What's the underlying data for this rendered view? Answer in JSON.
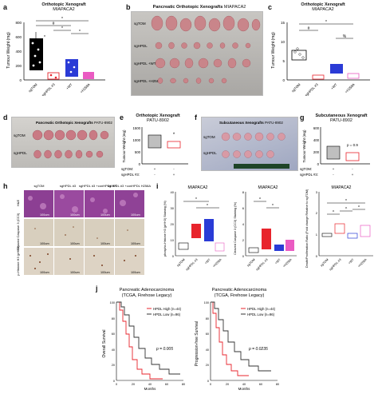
{
  "panel_labels": [
    "a",
    "b",
    "c",
    "d",
    "e",
    "f",
    "g",
    "h",
    "i",
    "j"
  ],
  "panel_a": {
    "title": "Orthotopic Xenograft",
    "subtitle": "MIAPACA2",
    "ylabel": "Tumour Weight (mg)",
    "yticks": [
      "0",
      "200",
      "400",
      "600",
      "800"
    ],
    "groups": [
      "sgTOM",
      "sgHPDL #3",
      "+WT",
      "+H258A"
    ],
    "sig_marks": [
      "*",
      "#",
      "*",
      "*",
      "*"
    ],
    "colors": [
      "#000000",
      "#e8242c",
      "#2a3bd6",
      "#ea5bc2"
    ]
  },
  "panel_b": {
    "title": "Pancreatic Orthotopic Xenografts",
    "cell_line": "MIAPACA2",
    "row_labels": [
      "sgTOM",
      "sgHPDL",
      "sgHPDL +WT",
      "sgHPDL +H258A"
    ]
  },
  "panel_c": {
    "title": "Orthotopic Xenograft",
    "subtitle": "MIAPACA2",
    "ylabel": "Tumour Weight (mg)",
    "yticks": [
      "0",
      "5",
      "10",
      "15"
    ],
    "groups": [
      "sgTOM",
      "sgHPDL #3",
      "+WT",
      "+H258A"
    ],
    "sig_marks": [
      "*",
      "#",
      "%"
    ]
  },
  "panel_d": {
    "title": "Pancreatic Orthotopic Xenografts",
    "cell_line": "PATU-8902",
    "row_labels": [
      "sgTOM",
      "sgHPDL"
    ]
  },
  "panel_e": {
    "title": "Orthotopic Xenograft",
    "subtitle": "PATU-8902",
    "ylabel": "Tumour Weight (mg)",
    "yticks": [
      "0",
      "500",
      "1000",
      "1500"
    ],
    "x_rows": [
      "sgTOM:",
      "sgHPDL #3:"
    ],
    "x_marks": [
      [
        "+",
        "-"
      ],
      [
        "-",
        "+"
      ]
    ],
    "sig": "*"
  },
  "panel_f": {
    "title": "Subcutaneous Xenografts",
    "cell_line": "PATU-8902",
    "row_labels": [
      "sgTOM",
      "sgHPDL"
    ]
  },
  "panel_g": {
    "title": "Subcutaneous Xenograft",
    "subtitle": "PATU-8902",
    "ylabel": "Tumour Weight (mg)",
    "yticks": [
      "0",
      "200",
      "400",
      "600"
    ],
    "x_rows": [
      "sgTOM:",
      "sgHPDL #3:"
    ],
    "x_marks": [
      [
        "+",
        "-"
      ],
      [
        "-",
        "+"
      ]
    ],
    "pvalue": "p = 0.9"
  },
  "panel_h": {
    "col_labels": [
      "sgTOM",
      "sgHPDL #3",
      "sgHPDL #3 +conHPDL WT",
      "sgHPDL #3 +conHPDL H258A"
    ],
    "row_labels": [
      "H&E",
      "Cleaved Caspase 3 (CC3)",
      "p-Histone H3 (pHH3)"
    ],
    "scale_bar": "100um"
  },
  "panel_i": {
    "plots": [
      {
        "title": "MIAPACA2",
        "ylabel": "phospho-Histone H3 (pHH3) Staining (%)",
        "yticks": [
          "0",
          "10",
          "20",
          "30",
          "40"
        ],
        "marks": [
          "*",
          "*"
        ]
      },
      {
        "title": "MIAPACA2",
        "ylabel": "Cleaved Caspase 3 (CC3) Staining (%)",
        "yticks": [
          "0",
          "2",
          "4",
          "6",
          "8"
        ],
        "marks": [
          "^",
          "*"
        ]
      },
      {
        "title": "MIAPACA2",
        "ylabel": "Death/Proliferation Ratio (Fold change Relative to sgTOM)",
        "yticks": [
          "0",
          "1",
          "2",
          "3"
        ],
        "marks": [
          "^",
          "^",
          "*",
          "^"
        ]
      }
    ],
    "groups": [
      "sgTOM",
      "sgHPDL #3",
      "+WT",
      "+H258A"
    ]
  },
  "panel_j": {
    "plots": [
      {
        "title": "Pancreatic Adenocarcinoma",
        "subtitle": "(TCGA, Firehose Legacy)",
        "ylabel": "Overall Survival",
        "xlabel": "Months",
        "pvalue": "p = 0.005"
      },
      {
        "title": "Pancreatic Adenocarcinoma",
        "subtitle": "(TCGA, Firehose Legacy)",
        "ylabel": "Progression-free Survival",
        "xlabel": "Months",
        "pvalue": "p = 0.0235"
      }
    ],
    "legend": [
      {
        "label": "HPDL High (n=44)",
        "color": "#e8242c"
      },
      {
        "label": "HPDL Low (n=96)",
        "color": "#333333"
      }
    ],
    "yticks": [
      "0",
      "20",
      "40",
      "60",
      "80",
      "100"
    ],
    "xticks": [
      "0",
      "20",
      "40",
      "60",
      "80"
    ]
  }
}
